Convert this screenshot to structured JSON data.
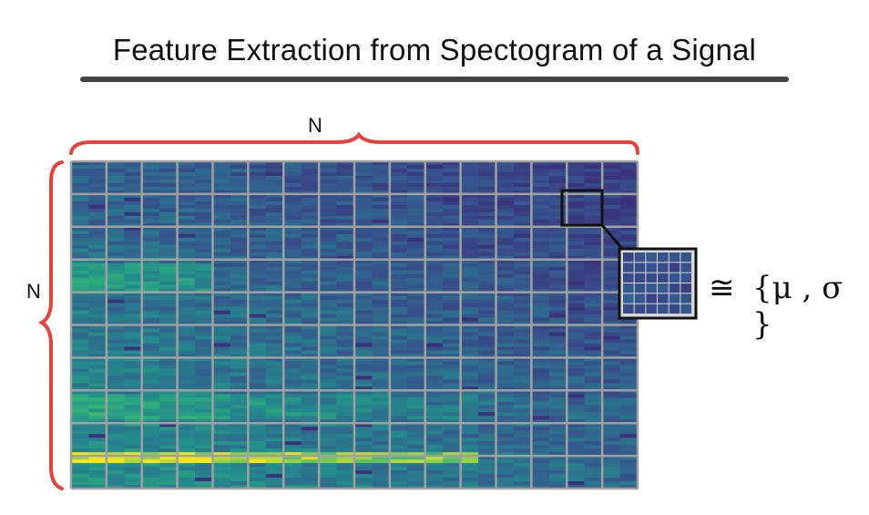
{
  "title": "Feature Extraction from Spectogram of a Signal",
  "labels": {
    "top": "N",
    "left": "N"
  },
  "equivalence": {
    "symbol": "≅",
    "stats": "{μ , σ }"
  },
  "palette": {
    "low": "#3d3b8a",
    "mid": "#2a8a8c",
    "high": "#f2e51a",
    "grid": "#a0a0a0",
    "brace": "#e8403a"
  }
}
